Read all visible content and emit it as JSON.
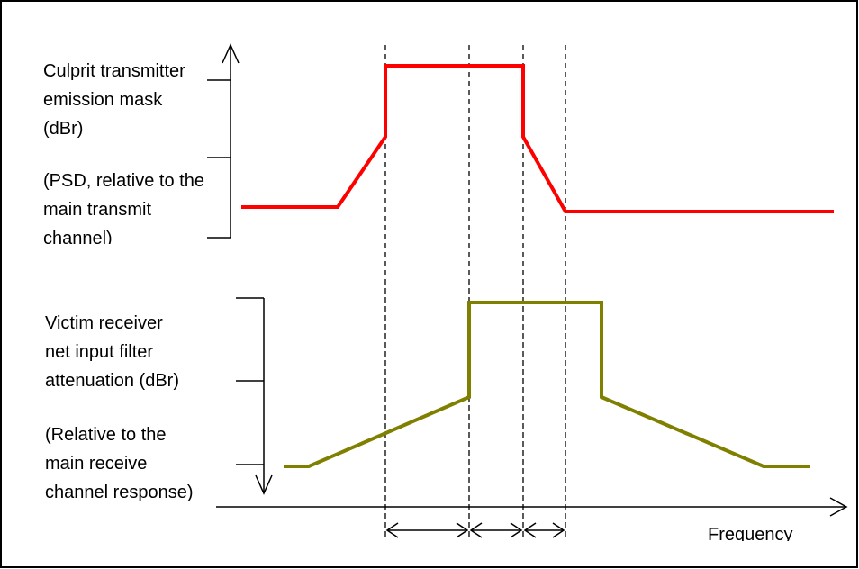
{
  "labels": {
    "tx_line1": "Culprit transmitter",
    "tx_line2": "emission mask",
    "tx_line3": "(dBr)",
    "tx_line4": "(PSD, relative to the",
    "tx_line5": "main transmit",
    "tx_line6": "channel)",
    "rx_line1": "Victim receiver",
    "rx_line2": "net input filter",
    "rx_line3": "attenuation (dBr)",
    "rx_line4": "(Relative to the",
    "rx_line5": "main receive",
    "rx_line6": "channel response)",
    "x_axis": "Frequency"
  },
  "colors": {
    "tx_curve": "#ff0000",
    "rx_curve": "#808000",
    "axis": "#000000"
  }
}
